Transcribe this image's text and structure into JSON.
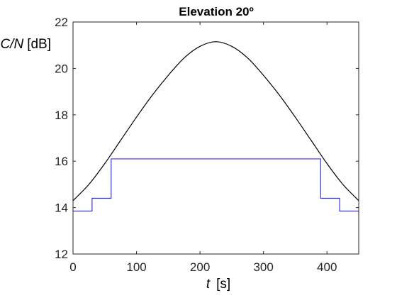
{
  "chart_data": {
    "type": "line",
    "title": "Elevation 20º",
    "xlabel_var": "t",
    "xlabel_unit": "[s]",
    "ylabel_var": "C/N",
    "ylabel_unit": "[dB]",
    "xlim": [
      0,
      450
    ],
    "ylim": [
      12,
      22
    ],
    "xticks": [
      0,
      100,
      200,
      300,
      400
    ],
    "yticks": [
      12,
      14,
      16,
      18,
      20,
      22
    ],
    "grid": false,
    "series": [
      {
        "color": "#000000",
        "style": "smooth",
        "x": [
          0,
          25,
          50,
          75,
          100,
          125,
          150,
          175,
          200,
          225,
          250,
          275,
          300,
          325,
          350,
          375,
          400,
          425,
          450
        ],
        "y": [
          14.3,
          15.0,
          15.9,
          16.9,
          17.9,
          18.85,
          19.7,
          20.45,
          20.95,
          21.15,
          20.95,
          20.45,
          19.7,
          18.85,
          17.9,
          16.9,
          15.9,
          15.0,
          14.3
        ]
      },
      {
        "color": "#3333ee",
        "style": "step",
        "x": [
          0,
          30,
          30,
          60,
          60,
          390,
          390,
          420,
          420,
          450
        ],
        "y": [
          13.85,
          13.85,
          14.4,
          14.4,
          16.1,
          16.1,
          14.4,
          14.4,
          13.85,
          13.85
        ]
      }
    ]
  }
}
